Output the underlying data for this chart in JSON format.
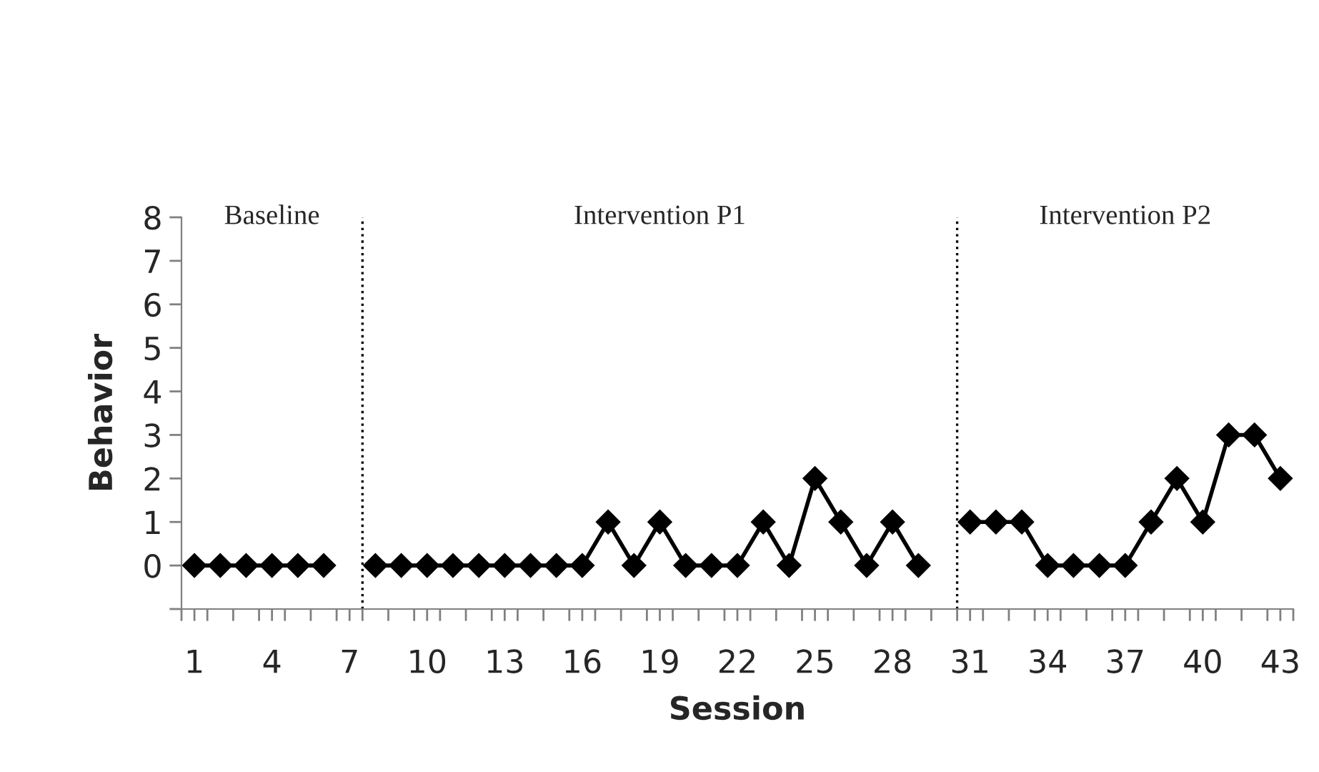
{
  "chart_data": {
    "type": "line",
    "xlabel": "Session",
    "ylabel": "Behavior",
    "x": [
      1,
      2,
      3,
      4,
      5,
      6,
      7,
      8,
      9,
      10,
      11,
      12,
      13,
      14,
      15,
      16,
      17,
      18,
      19,
      20,
      21,
      22,
      23,
      24,
      25,
      26,
      27,
      28,
      29,
      30,
      31,
      32,
      33,
      34,
      35,
      36,
      37,
      38,
      39,
      40,
      41,
      42,
      43
    ],
    "series": [
      {
        "color": "#000000",
        "values": [
          0,
          0,
          0,
          0,
          0,
          0,
          null,
          0,
          0,
          0,
          0,
          0,
          0,
          0,
          0,
          0,
          1,
          0,
          1,
          0,
          0,
          0,
          1,
          0,
          2,
          1,
          0,
          1,
          0,
          null,
          1,
          1,
          1,
          0,
          0,
          0,
          0,
          1,
          2,
          1,
          3,
          3,
          2
        ]
      }
    ],
    "marker": "diamond",
    "line_style": "solid",
    "grid": false,
    "legend": false,
    "xlim": [
      0.5,
      43.5
    ],
    "xticks": [
      1,
      4,
      7,
      10,
      13,
      16,
      19,
      22,
      25,
      28,
      31,
      34,
      37,
      40,
      43,
      {
        "value": 0.5,
        "label": null
      },
      {
        "value": 1.5,
        "label": null
      },
      {
        "value": 2.5,
        "label": null
      },
      {
        "value": 3.5,
        "label": null
      },
      {
        "value": 4.5,
        "label": null
      },
      {
        "value": 5.5,
        "label": null
      },
      {
        "value": 6.5,
        "label": null
      },
      {
        "value": 7.5,
        "label": null
      },
      {
        "value": 8.5,
        "label": null
      },
      {
        "value": 9.5,
        "label": null
      },
      {
        "value": 10.5,
        "label": null
      },
      {
        "value": 11.5,
        "label": null
      },
      {
        "value": 12.5,
        "label": null
      },
      {
        "value": 13.5,
        "label": null
      },
      {
        "value": 14.5,
        "label": null
      },
      {
        "value": 15.5,
        "label": null
      },
      {
        "value": 16.5,
        "label": null
      },
      {
        "value": 17.5,
        "label": null
      },
      {
        "value": 18.5,
        "label": null
      },
      {
        "value": 19.5,
        "label": null
      },
      {
        "value": 20.5,
        "label": null
      },
      {
        "value": 21.5,
        "label": null
      },
      {
        "value": 22.5,
        "label": null
      },
      {
        "value": 23.5,
        "label": null
      },
      {
        "value": 24.5,
        "label": null
      },
      {
        "value": 25.5,
        "label": null
      },
      {
        "value": 26.5,
        "label": null
      },
      {
        "value": 27.5,
        "label": null
      },
      {
        "value": 28.5,
        "label": null
      },
      {
        "value": 29.5,
        "label": null
      },
      {
        "value": 30.5,
        "label": null
      },
      {
        "value": 31.5,
        "label": null
      },
      {
        "value": 32.5,
        "label": null
      },
      {
        "value": 33.5,
        "label": null
      },
      {
        "value": 34.5,
        "label": null
      },
      {
        "value": 35.5,
        "label": null
      },
      {
        "value": 36.5,
        "label": null
      },
      {
        "value": 37.5,
        "label": null
      },
      {
        "value": 38.5,
        "label": null
      },
      {
        "value": 39.5,
        "label": null
      },
      {
        "value": 40.5,
        "label": null
      },
      {
        "value": 41.5,
        "label": null
      },
      {
        "value": 42.5,
        "label": null
      },
      {
        "value": 43.5,
        "label": null
      }
    ],
    "ylim": [
      -1,
      8
    ],
    "yticks": [
      {
        "value": -1,
        "label": null
      },
      0,
      1,
      2,
      3,
      4,
      5,
      6,
      7,
      8
    ],
    "ref_lines": [
      {
        "axis": "x",
        "value": 7.5,
        "line_style": "dotted",
        "color": "#000000"
      },
      {
        "axis": "x",
        "value": 30.5,
        "line_style": "dotted",
        "color": "#000000"
      }
    ],
    "annotations": [
      "Baseline",
      "Intervention P1",
      "Intervention P2"
    ]
  }
}
